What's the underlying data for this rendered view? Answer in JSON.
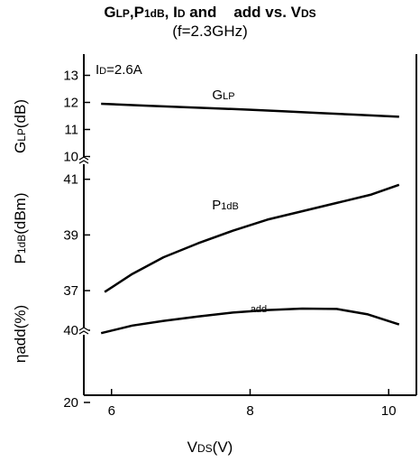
{
  "chart_data": {
    "type": "line",
    "title_parts": [
      {
        "text": "G",
        "sub": false
      },
      {
        "text": "LP",
        "sub": true
      },
      {
        "text": ",P",
        "sub": false
      },
      {
        "text": "1dB",
        "sub": true
      },
      {
        "text": ", I",
        "sub": false
      },
      {
        "text": "D",
        "sub": true
      },
      {
        "text": " and    add vs. V",
        "sub": false
      },
      {
        "text": "DS",
        "sub": true
      }
    ],
    "subtitle": "(f=2.3GHz)",
    "annotation": {
      "main": "I",
      "sub": "D",
      "rest": "=2.6A"
    },
    "xlabel": {
      "main": "V",
      "sub": "DS",
      "rest": "(V)"
    },
    "x_ticks": [
      "6",
      "8",
      "10"
    ],
    "xlim": [
      5.6,
      10.4
    ],
    "panels": [
      {
        "id": "glp",
        "ylabel": {
          "main": "G",
          "sub": "LP",
          "rest": "(dB)"
        },
        "ylim": [
          10,
          13
        ],
        "y_ticks": [
          "10",
          "11",
          "12",
          "13"
        ],
        "series": [
          {
            "label_main": "G",
            "label_sub": "LP",
            "x": [
              5.85,
              6.5,
              7.0,
              7.5,
              8.0,
              8.5,
              9.0,
              9.5,
              10.15
            ],
            "y": [
              11.95,
              11.88,
              11.83,
              11.78,
              11.73,
              11.67,
              11.61,
              11.55,
              11.47
            ]
          }
        ]
      },
      {
        "id": "p1db",
        "ylabel": {
          "main": "P",
          "sub": "1dB",
          "rest": "(dBm)"
        },
        "ylim": [
          36.5,
          41.2
        ],
        "y_ticks": [
          "37",
          "39",
          "41"
        ],
        "series": [
          {
            "label_main": "P",
            "label_sub": "1dB",
            "x": [
              5.9,
              6.3,
              6.75,
              7.25,
              7.75,
              8.25,
              8.75,
              9.25,
              9.75,
              10.15
            ],
            "y": [
              36.95,
              37.6,
              38.2,
              38.7,
              39.15,
              39.55,
              39.85,
              40.15,
              40.45,
              40.8
            ]
          }
        ]
      },
      {
        "id": "eta",
        "ylabel": {
          "main": "ηadd(%)",
          "sub": "",
          "rest": ""
        },
        "ylim": [
          20,
          50
        ],
        "y_ticks": [
          "20",
          "40"
        ],
        "series": [
          {
            "label_main": "add",
            "label_sub": "",
            "x": [
              5.85,
              6.3,
              6.75,
              7.25,
              7.75,
              8.25,
              8.75,
              9.25,
              9.7,
              10.15
            ],
            "y": [
              39.2,
              41.3,
              42.6,
              43.8,
              44.9,
              45.6,
              46.0,
              45.9,
              44.4,
              41.6
            ]
          }
        ]
      }
    ]
  }
}
